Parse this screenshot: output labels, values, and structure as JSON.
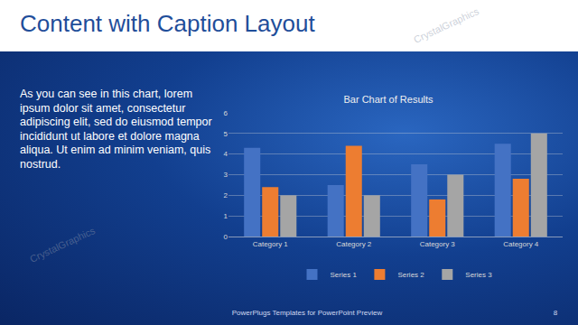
{
  "slide": {
    "title": "Content with Caption Layout",
    "caption": "As you can see in this chart, lorem ipsum dolor sit amet, consectetur adipiscing elit, sed do eiusmod tempor incididunt ut labore et dolore magna aliqua. Ut enim ad minim veniam, quis nostrud.",
    "footer": "PowerPlugs Templates for PowerPoint Preview",
    "page_number": 8,
    "watermark": "CrystalGraphics"
  },
  "chart_data": {
    "type": "bar",
    "title": "Bar Chart of Results",
    "categories": [
      "Category 1",
      "Category 2",
      "Category 3",
      "Category 4"
    ],
    "series": [
      {
        "name": "Series 1",
        "color": "#4472c4",
        "values": [
          4.3,
          2.5,
          3.5,
          4.5
        ]
      },
      {
        "name": "Series 2",
        "color": "#ed7d31",
        "values": [
          2.4,
          4.4,
          1.8,
          2.8
        ]
      },
      {
        "name": "Series 3",
        "color": "#a5a5a5",
        "values": [
          2.0,
          2.0,
          3.0,
          5.0
        ]
      }
    ],
    "ylim": [
      0,
      6
    ],
    "yticks": [
      0,
      1,
      2,
      3,
      4,
      5,
      6
    ],
    "grid": true,
    "legend": "bottom"
  }
}
